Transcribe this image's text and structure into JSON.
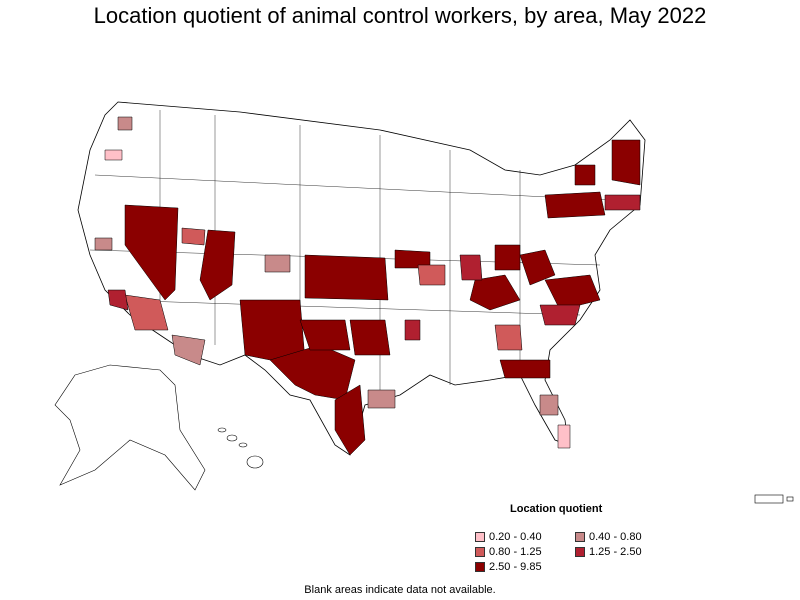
{
  "title": "Location quotient of animal control workers, by area, May 2022",
  "legend": {
    "title": "Location quotient",
    "items": [
      {
        "label": "0.20 - 0.40",
        "color": "#ffc0c8"
      },
      {
        "label": "0.40 - 0.80",
        "color": "#c88a8a"
      },
      {
        "label": "0.80 - 1.25",
        "color": "#d05a5a"
      },
      {
        "label": "1.25 - 2.50",
        "color": "#b02030"
      },
      {
        "label": "2.50 - 9.85",
        "color": "#8b0000"
      }
    ]
  },
  "note": "Blank areas indicate data not available."
}
